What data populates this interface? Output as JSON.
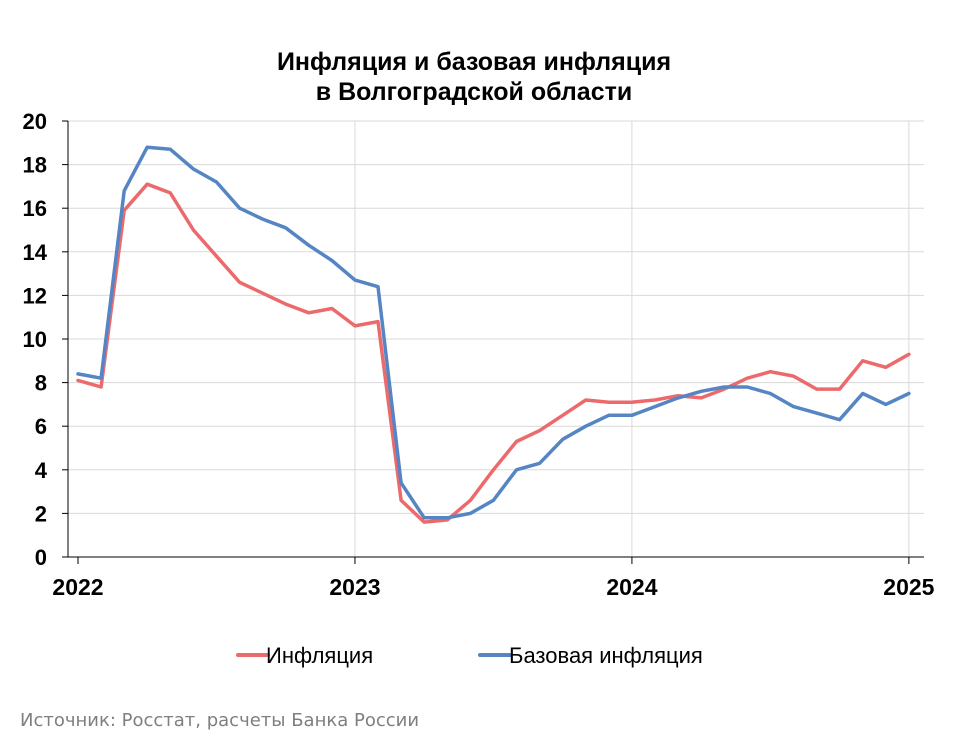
{
  "chart_data": {
    "type": "line",
    "title": "Инфляция и базовая инфляция",
    "subtitle": "в Волгоградской области",
    "ylim": [
      0,
      20
    ],
    "yticks": [
      "0",
      "2",
      "4",
      "6",
      "8",
      "10",
      "12",
      "14",
      "16",
      "18",
      "20"
    ],
    "xticks": [
      "2022",
      "2023",
      "2024",
      "2025"
    ],
    "x": [
      "2022-01",
      "2022-02",
      "2022-03",
      "2022-04",
      "2022-05",
      "2022-06",
      "2022-07",
      "2022-08",
      "2022-09",
      "2022-10",
      "2022-11",
      "2022-12",
      "2023-01",
      "2023-02",
      "2023-03",
      "2023-04",
      "2023-05",
      "2023-06",
      "2023-07",
      "2023-08",
      "2023-09",
      "2023-10",
      "2023-11",
      "2023-12",
      "2024-01",
      "2024-02",
      "2024-03",
      "2024-04",
      "2024-05",
      "2024-06",
      "2024-07",
      "2024-08",
      "2024-09",
      "2024-10",
      "2024-11",
      "2024-12",
      "2025-01"
    ],
    "series": [
      {
        "name": "Инфляция",
        "color": "#ec6a6c",
        "values": [
          8.1,
          7.8,
          15.9,
          17.1,
          16.7,
          15.0,
          13.8,
          12.6,
          12.1,
          11.6,
          11.2,
          11.4,
          10.6,
          10.8,
          2.6,
          1.6,
          1.7,
          2.6,
          4.0,
          5.3,
          5.8,
          6.5,
          7.2,
          7.1,
          7.1,
          7.2,
          7.4,
          7.3,
          7.7,
          8.2,
          8.5,
          8.3,
          7.7,
          7.7,
          9.0,
          8.7,
          9.3
        ]
      },
      {
        "name": "Базовая инфляция",
        "color": "#5585c3",
        "values": [
          8.4,
          8.2,
          16.8,
          18.8,
          18.7,
          17.8,
          17.2,
          16.0,
          15.5,
          15.1,
          14.3,
          13.6,
          12.7,
          12.4,
          3.4,
          1.8,
          1.8,
          2.0,
          2.6,
          4.0,
          4.3,
          5.4,
          6.0,
          6.5,
          6.5,
          6.9,
          7.3,
          7.6,
          7.8,
          7.8,
          7.5,
          6.9,
          6.6,
          6.3,
          7.5,
          7.0,
          7.5
        ]
      }
    ],
    "grid": true,
    "legend_position": "bottom"
  },
  "source_text": "Источник: Росстат, расчеты Банка России"
}
